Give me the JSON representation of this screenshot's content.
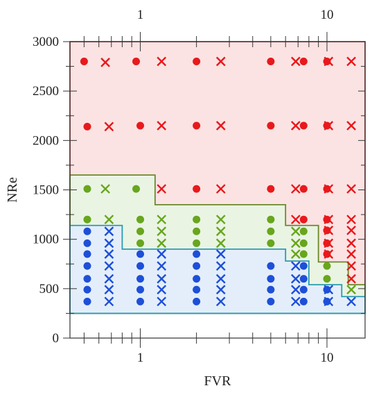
{
  "chart_data": {
    "type": "scatter",
    "title": "",
    "xlabel": "FVR",
    "ylabel": "NRe",
    "xscale": "log",
    "xlim": [
      0.42,
      16
    ],
    "ylim": [
      0,
      3000
    ],
    "grid": false,
    "legend": "none",
    "x_tick_labels": [
      {
        "value": 1,
        "label": "1"
      },
      {
        "value": 10,
        "label": "10"
      }
    ],
    "y_tick_labels": [
      {
        "value": 0,
        "label": "0"
      },
      {
        "value": 500,
        "label": "500"
      },
      {
        "value": 1000,
        "label": "1000"
      },
      {
        "value": 1500,
        "label": "1500"
      },
      {
        "value": 2000,
        "label": "2000"
      },
      {
        "value": 2500,
        "label": "2500"
      },
      {
        "value": 3000,
        "label": "3000"
      }
    ],
    "regions": [
      {
        "color": "blue",
        "fill": "#e3eefa",
        "stroke": "#2a9bb0",
        "bottom": 250,
        "top_steps": [
          [
            0.42,
            1140
          ],
          [
            0.8,
            900
          ],
          [
            6.0,
            780
          ],
          [
            8.0,
            540
          ],
          [
            12.0,
            420
          ],
          [
            16,
            420
          ]
        ]
      },
      {
        "color": "green",
        "fill": "#eaf4e3",
        "stroke": "#6a8a2a",
        "top_steps": [
          [
            0.42,
            1650
          ],
          [
            1.2,
            1350
          ],
          [
            6.0,
            1140
          ],
          [
            9.0,
            770
          ],
          [
            13.0,
            540
          ],
          [
            16,
            540
          ]
        ]
      },
      {
        "color": "red",
        "fill": "#fbe3e3",
        "stroke": "#a51e1e",
        "top": 3000
      }
    ],
    "colors": {
      "red": "#e8191c",
      "green": "#67a61d",
      "blue": "#1e4fd8"
    },
    "series": [
      {
        "marker": "circle",
        "color": "red",
        "points": [
          [
            0.5,
            2800
          ],
          [
            0.95,
            2800
          ],
          [
            2.0,
            2800
          ],
          [
            5.0,
            2800
          ],
          [
            7.5,
            2800
          ],
          [
            10.0,
            2800
          ],
          [
            0.52,
            2140
          ],
          [
            1.0,
            2150
          ],
          [
            2.0,
            2150
          ],
          [
            5.0,
            2150
          ],
          [
            7.5,
            2150
          ],
          [
            10.0,
            2150
          ],
          [
            2.0,
            1510
          ],
          [
            5.0,
            1510
          ],
          [
            7.5,
            1510
          ],
          [
            10.0,
            1510
          ],
          [
            7.5,
            1200
          ],
          [
            10.0,
            1200
          ],
          [
            10.0,
            1090
          ],
          [
            10.0,
            960
          ],
          [
            10.0,
            850
          ]
        ]
      },
      {
        "marker": "x",
        "color": "red",
        "points": [
          [
            0.65,
            2790
          ],
          [
            1.3,
            2800
          ],
          [
            2.7,
            2800
          ],
          [
            6.8,
            2800
          ],
          [
            10.2,
            2800
          ],
          [
            13.5,
            2800
          ],
          [
            0.68,
            2140
          ],
          [
            1.3,
            2150
          ],
          [
            2.7,
            2150
          ],
          [
            6.8,
            2150
          ],
          [
            10.2,
            2150
          ],
          [
            13.5,
            2150
          ],
          [
            1.3,
            1510
          ],
          [
            2.7,
            1510
          ],
          [
            6.8,
            1510
          ],
          [
            10.2,
            1510
          ],
          [
            13.5,
            1510
          ],
          [
            6.8,
            1200
          ],
          [
            10.2,
            1200
          ],
          [
            13.5,
            1200
          ],
          [
            10.2,
            1090
          ],
          [
            13.5,
            1090
          ],
          [
            10.2,
            960
          ],
          [
            13.5,
            960
          ],
          [
            10.2,
            850
          ],
          [
            13.5,
            850
          ],
          [
            13.5,
            730
          ],
          [
            13.5,
            600
          ]
        ]
      },
      {
        "marker": "circle",
        "color": "green",
        "points": [
          [
            0.52,
            1510
          ],
          [
            0.95,
            1510
          ],
          [
            0.52,
            1200
          ],
          [
            1.0,
            1200
          ],
          [
            1.0,
            1080
          ],
          [
            1.0,
            960
          ],
          [
            2.0,
            1200
          ],
          [
            2.0,
            1080
          ],
          [
            2.0,
            960
          ],
          [
            5.0,
            1200
          ],
          [
            5.0,
            1080
          ],
          [
            5.0,
            960
          ],
          [
            7.5,
            1080
          ],
          [
            7.5,
            960
          ],
          [
            7.5,
            850
          ],
          [
            10.0,
            730
          ],
          [
            10.0,
            600
          ]
        ]
      },
      {
        "marker": "x",
        "color": "green",
        "points": [
          [
            0.65,
            1510
          ],
          [
            0.68,
            1200
          ],
          [
            1.3,
            1200
          ],
          [
            1.3,
            1080
          ],
          [
            1.3,
            960
          ],
          [
            2.7,
            1200
          ],
          [
            2.7,
            1080
          ],
          [
            2.7,
            960
          ],
          [
            6.8,
            1080
          ],
          [
            6.8,
            960
          ],
          [
            6.8,
            850
          ],
          [
            13.5,
            490
          ]
        ]
      },
      {
        "marker": "circle",
        "color": "blue",
        "points": [
          [
            0.52,
            1080
          ],
          [
            0.52,
            960
          ],
          [
            0.52,
            850
          ],
          [
            0.52,
            730
          ],
          [
            0.52,
            600
          ],
          [
            0.52,
            490
          ],
          [
            0.52,
            370
          ],
          [
            1.0,
            850
          ],
          [
            1.0,
            730
          ],
          [
            1.0,
            600
          ],
          [
            1.0,
            490
          ],
          [
            1.0,
            370
          ],
          [
            2.0,
            850
          ],
          [
            2.0,
            730
          ],
          [
            2.0,
            600
          ],
          [
            2.0,
            490
          ],
          [
            2.0,
            370
          ],
          [
            5.0,
            730
          ],
          [
            5.0,
            600
          ],
          [
            5.0,
            490
          ],
          [
            5.0,
            370
          ],
          [
            7.5,
            730
          ],
          [
            7.5,
            600
          ],
          [
            7.5,
            490
          ],
          [
            7.5,
            370
          ],
          [
            10.0,
            490
          ],
          [
            10.0,
            370
          ]
        ]
      },
      {
        "marker": "x",
        "color": "blue",
        "points": [
          [
            0.68,
            1080
          ],
          [
            0.68,
            960
          ],
          [
            0.68,
            850
          ],
          [
            0.68,
            730
          ],
          [
            0.68,
            600
          ],
          [
            0.68,
            490
          ],
          [
            0.68,
            370
          ],
          [
            1.3,
            850
          ],
          [
            1.3,
            730
          ],
          [
            1.3,
            600
          ],
          [
            1.3,
            490
          ],
          [
            1.3,
            370
          ],
          [
            2.7,
            850
          ],
          [
            2.7,
            730
          ],
          [
            2.7,
            600
          ],
          [
            2.7,
            490
          ],
          [
            2.7,
            370
          ],
          [
            6.8,
            730
          ],
          [
            6.8,
            600
          ],
          [
            6.8,
            490
          ],
          [
            6.8,
            370
          ],
          [
            10.2,
            490
          ],
          [
            10.2,
            370
          ],
          [
            13.5,
            370
          ]
        ]
      }
    ]
  }
}
